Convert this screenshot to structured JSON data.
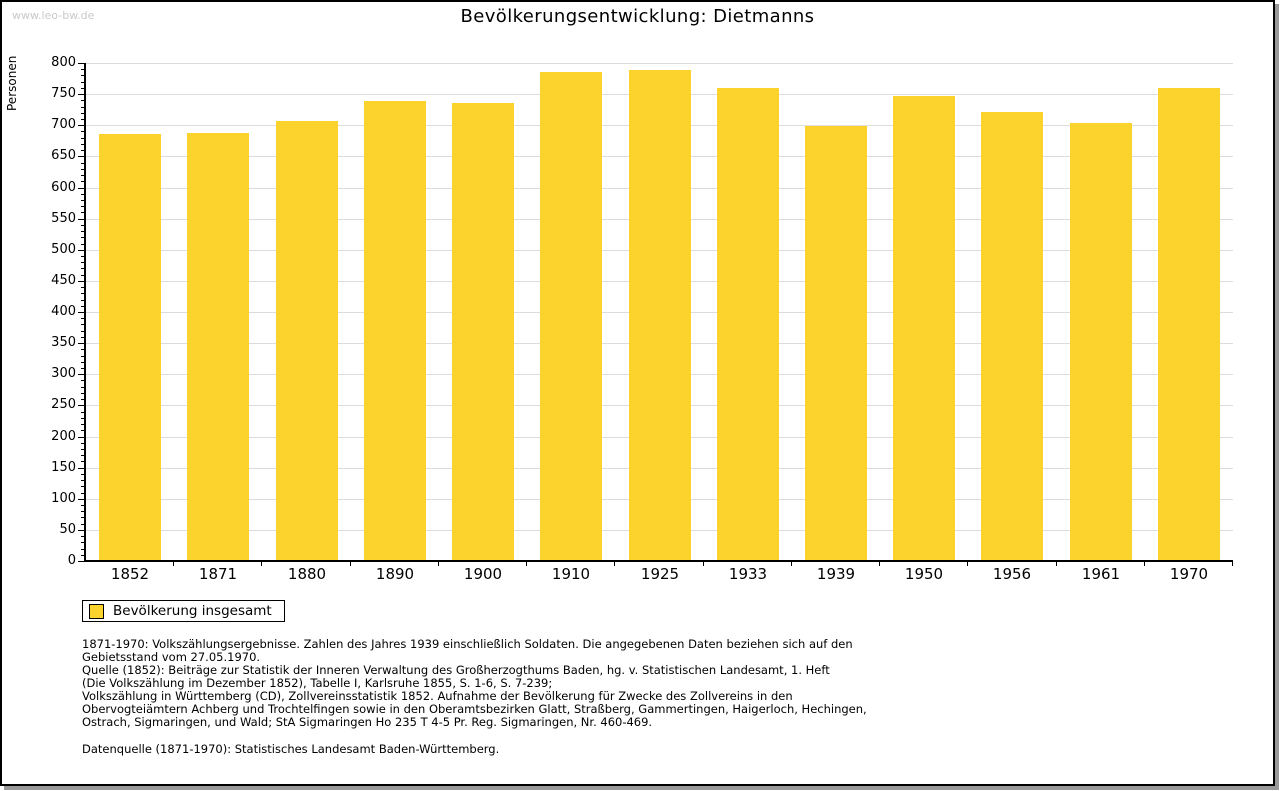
{
  "watermark": "www.leo-bw.de",
  "title": "Bevölkerungsentwicklung: Dietmanns",
  "chart_data": {
    "type": "bar",
    "title": "Bevölkerungsentwicklung: Dietmanns",
    "categories": [
      "1852",
      "1871",
      "1880",
      "1890",
      "1900",
      "1910",
      "1925",
      "1933",
      "1939",
      "1950",
      "1956",
      "1961",
      "1970"
    ],
    "values": [
      686,
      688,
      707,
      739,
      736,
      786,
      789,
      760,
      699,
      747,
      721,
      704,
      760
    ],
    "series_name": "Bevölkerung insgesamt",
    "xlabel": "",
    "ylabel": "Personen",
    "ylim": [
      0,
      800
    ],
    "ytick_step": 50,
    "yminor_step": 10,
    "grid": true,
    "bar_color": "#fcd32d",
    "legend_position": "bottom-left"
  },
  "legend": {
    "label": "Bevölkerung insgesamt",
    "swatch_color": "#fcd32d"
  },
  "footnotes": {
    "lines": [
      "1871-1970: Volkszählungsergebnisse. Zahlen des Jahres 1939 einschließlich Soldaten. Die angegebenen Daten beziehen sich auf den",
      "Gebietsstand vom 27.05.1970.",
      "Quelle (1852): Beiträge zur Statistik der Inneren Verwaltung des Großherzogthums Baden, hg. v. Statistischen Landesamt, 1. Heft",
      "(Die Volkszählung im Dezember 1852), Tabelle I, Karlsruhe 1855, S. 1-6, S. 7-239;",
      "Volkszählung in Württemberg (CD), Zollvereinsstatistik 1852. Aufnahme der Bevölkerung für Zwecke des Zollvereins in den",
      "Obervogteiämtern Achberg und Trochtelfingen sowie in den Oberamtsbezirken Glatt, Straßberg, Gammertingen, Haigerloch, Hechingen,",
      "Ostrach, Sigmaringen, und Wald; StA Sigmaringen Ho 235 T 4-5 Pr. Reg. Sigmaringen, Nr. 460-469."
    ],
    "datasource": "Datenquelle (1871-1970): Statistisches Landesamt Baden-Württemberg."
  },
  "colors": {
    "bar": "#fcd32d",
    "gridline": "#dcdcdc",
    "axis": "#000000",
    "watermark_text": "#c9c9c9",
    "panel_shadow": "#999999",
    "panel_border": "#000000"
  }
}
